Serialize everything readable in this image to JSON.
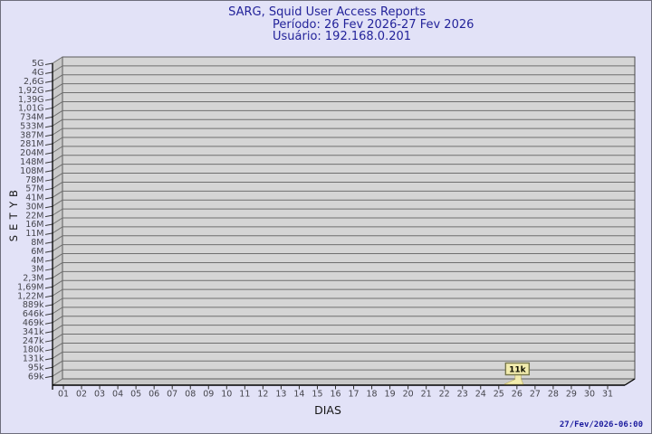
{
  "header": {
    "title": "SARG, Squid User Access Reports",
    "period": "Período: 26 Fev 2026-27 Fev 2026",
    "user": "Usuário: 192.168.0.201"
  },
  "footer": {
    "timestamp": "27/Fev/2026-06:00"
  },
  "colors": {
    "page_bg": "#e2e2f7",
    "title_text": "#23239a",
    "plot_fill": "#d5d5d5",
    "wall_fill": "#c9c9c9",
    "gridline": "#6f6f6f",
    "axis": "#000000",
    "tick_text": "#45454c",
    "flag_fill": "#f2ecae",
    "flag_border": "#77774a",
    "timestamp_text": "#1b1b9e"
  },
  "chart_data": {
    "type": "bar",
    "title": "SARG, Squid User Access Reports",
    "subtitle_period": "Período: 26 Fev 2026-27 Fev 2026",
    "subtitle_user": "Usuário: 192.168.0.201",
    "xlabel": "DIAS",
    "ylabel": "BYTES",
    "y_scale": "logarithmic",
    "y_ticks_top_to_bottom": [
      "5G",
      "4G",
      "2,6G",
      "1,92G",
      "1,39G",
      "1,01G",
      "734M",
      "533M",
      "387M",
      "281M",
      "204M",
      "148M",
      "108M",
      "78M",
      "57M",
      "41M",
      "30M",
      "22M",
      "16M",
      "11M",
      "8M",
      "6M",
      "4M",
      "3M",
      "2,3M",
      "1,69M",
      "1,22M",
      "889k",
      "646k",
      "469k",
      "341k",
      "247k",
      "180k",
      "131k",
      "95k",
      "69k"
    ],
    "x_ticks": [
      "01",
      "02",
      "03",
      "04",
      "05",
      "06",
      "07",
      "08",
      "09",
      "10",
      "11",
      "12",
      "13",
      "14",
      "15",
      "16",
      "17",
      "18",
      "19",
      "20",
      "21",
      "22",
      "23",
      "24",
      "25",
      "26",
      "27",
      "28",
      "29",
      "30",
      "31"
    ],
    "grid": true,
    "legend": "none",
    "points": [
      {
        "x": "26",
        "label": "11k",
        "value_bytes_approx": 11000
      }
    ]
  }
}
